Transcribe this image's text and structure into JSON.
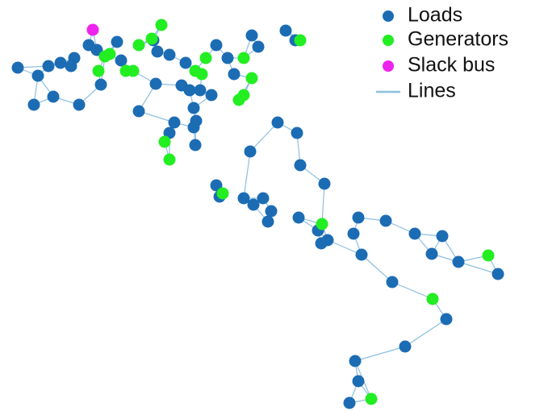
{
  "legend": {
    "items": [
      {
        "label": "Loads",
        "color": "#1c6cb4"
      },
      {
        "label": "Generators",
        "color": "#22ee22"
      },
      {
        "label": "Slack bus",
        "color": "#ee22ee"
      },
      {
        "label": "Lines",
        "color": "#8cbfe0"
      }
    ]
  }
}
